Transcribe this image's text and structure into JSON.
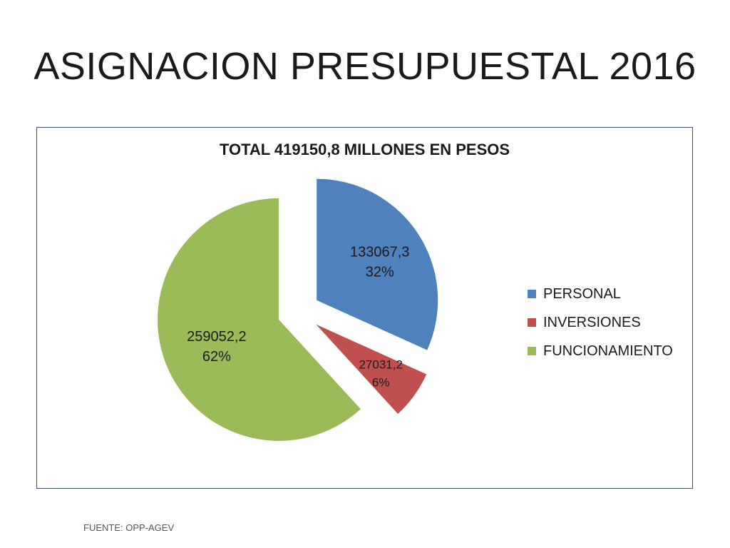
{
  "slide": {
    "title": "ASIGNACION PRESUPUESTAL 2016",
    "source": "FUENTE: OPP-AGEV"
  },
  "chart_data": {
    "type": "pie",
    "title": "TOTAL 419150,8 MILLONES EN PESOS",
    "legend_position": "right",
    "categories": [
      "PERSONAL",
      "INVERSIONES",
      "FUNCIONAMIENTO"
    ],
    "values": [
      133067.3,
      27031.2,
      259052.2
    ],
    "value_labels": [
      "133067,3",
      "27031,2",
      "259052,2"
    ],
    "percent_labels": [
      "32%",
      "6%",
      "62%"
    ],
    "colors": [
      "#4f81bd",
      "#c0504d",
      "#9bbb59"
    ],
    "exploded": true
  }
}
